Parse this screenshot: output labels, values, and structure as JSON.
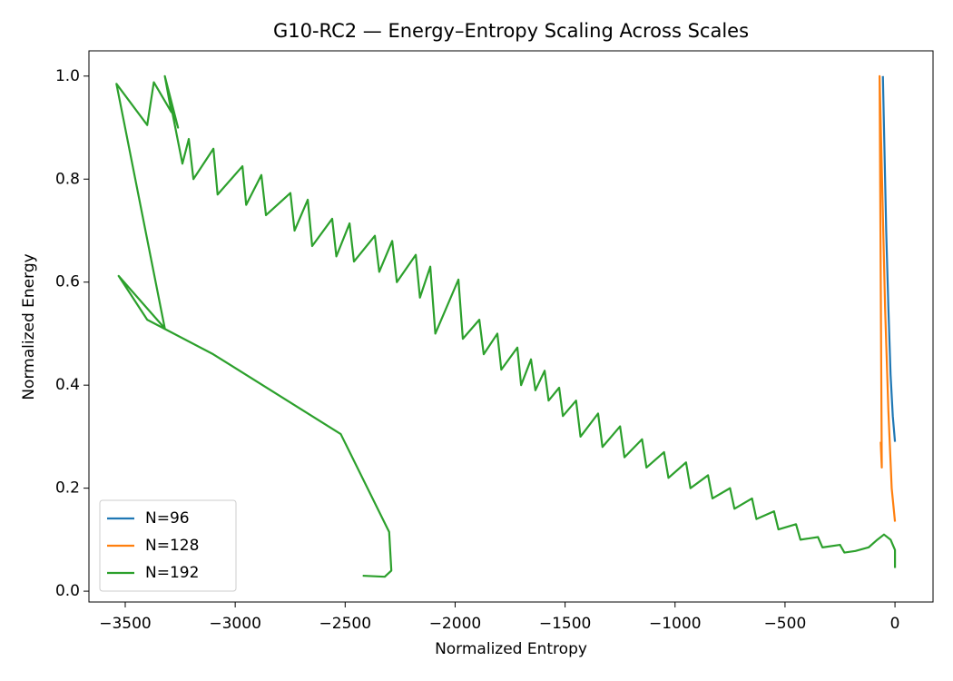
{
  "chart_data": {
    "type": "line",
    "title": "G10-RC2 — Energy–Entropy Scaling Across Scales",
    "x_label": "Normalized Entropy",
    "y_label": "Normalized Energy",
    "xlim": [
      -3665,
      173
    ],
    "ylim": [
      -0.021,
      1.049
    ],
    "xticks": [
      {
        "value": -3500,
        "label": "−3500"
      },
      {
        "value": -3000,
        "label": "−3000"
      },
      {
        "value": -2500,
        "label": "−2500"
      },
      {
        "value": -2000,
        "label": "−2000"
      },
      {
        "value": -1500,
        "label": "−1500"
      },
      {
        "value": -1000,
        "label": "−1000"
      },
      {
        "value": -500,
        "label": "−500"
      },
      0
    ],
    "yticks": [
      {
        "value": 0,
        "label": "0.0"
      },
      0.2,
      0.4,
      0.6,
      0.8,
      {
        "value": 1,
        "label": "1.0"
      }
    ],
    "grid": false,
    "legend": "lower left",
    "series": [
      {
        "name": "N=96",
        "color": "#1f77b4",
        "x": [
          -55,
          -50,
          -40,
          -30,
          -20,
          -10,
          0
        ],
        "values": [
          1.0,
          0.9,
          0.7,
          0.55,
          0.42,
          0.34,
          0.29
        ]
      },
      {
        "name": "N=128",
        "color": "#ff7f0e",
        "x": [
          -65,
          -60,
          -70,
          -45,
          -30,
          -15,
          0
        ],
        "values": [
          0.29,
          0.24,
          1.0,
          0.55,
          0.35,
          0.2,
          0.135
        ]
      },
      {
        "name": "N=192",
        "color": "#2ca02c",
        "x": [
          -2420,
          -2320,
          -2290,
          -2300,
          -2520,
          -3100,
          -3400,
          -3530,
          -3320,
          -3540,
          -3400,
          -3370,
          -3290,
          -3320,
          -3260,
          -3300,
          -3240,
          -3211,
          -3190,
          -3099,
          -3080,
          -2967,
          -2950,
          -2881,
          -2860,
          -2749,
          -2730,
          -2670,
          -2650,
          -2559,
          -2540,
          -2480,
          -2460,
          -2365,
          -2345,
          -2286,
          -2265,
          -2179,
          -2160,
          -2113,
          -2090,
          -1985,
          -1965,
          -1890,
          -1870,
          -1808,
          -1790,
          -1717,
          -1700,
          -1655,
          -1635,
          -1593,
          -1575,
          -1527,
          -1510,
          -1450,
          -1430,
          -1350,
          -1330,
          -1250,
          -1230,
          -1150,
          -1130,
          -1050,
          -1030,
          -950,
          -930,
          -850,
          -830,
          -750,
          -730,
          -650,
          -630,
          -550,
          -530,
          -450,
          -430,
          -350,
          -330,
          -250,
          -230,
          -180,
          -120,
          -80,
          -50,
          -20,
          0,
          0
        ],
        "values": [
          0.03,
          0.028,
          0.04,
          0.115,
          0.305,
          0.46,
          0.527,
          0.612,
          0.51,
          0.985,
          0.905,
          0.988,
          0.93,
          1.0,
          0.9,
          0.96,
          0.83,
          0.878,
          0.8,
          0.859,
          0.77,
          0.825,
          0.75,
          0.808,
          0.73,
          0.773,
          0.7,
          0.76,
          0.67,
          0.723,
          0.65,
          0.714,
          0.64,
          0.69,
          0.62,
          0.68,
          0.6,
          0.653,
          0.57,
          0.63,
          0.5,
          0.605,
          0.49,
          0.527,
          0.46,
          0.5,
          0.43,
          0.473,
          0.4,
          0.45,
          0.39,
          0.428,
          0.37,
          0.395,
          0.34,
          0.37,
          0.3,
          0.345,
          0.28,
          0.32,
          0.26,
          0.295,
          0.24,
          0.27,
          0.22,
          0.25,
          0.2,
          0.225,
          0.18,
          0.2,
          0.16,
          0.18,
          0.14,
          0.155,
          0.12,
          0.13,
          0.1,
          0.105,
          0.085,
          0.09,
          0.075,
          0.078,
          0.085,
          0.1,
          0.11,
          0.1,
          0.08,
          0.045
        ]
      }
    ]
  }
}
